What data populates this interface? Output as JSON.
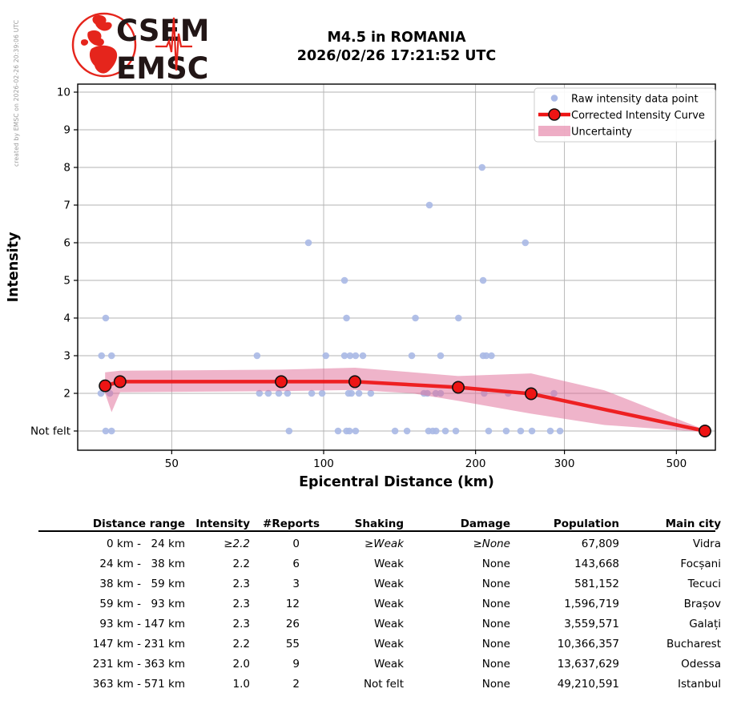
{
  "meta": {
    "created_by": "created by EMSC on 2026-02-26 20:39:06 UTC"
  },
  "logo": {
    "line1": "CSEM",
    "line2": "EMSC"
  },
  "title": {
    "line1": "M4.5 in ROMANIA",
    "line2": "2026/02/26 17:21:52 UTC"
  },
  "chart_data": {
    "type": "scatter",
    "title": "M4.5 in ROMANIA 2026/02/26 17:21:52 UTC",
    "xlabel": "Epicentral Distance (km)",
    "ylabel": "Intensity",
    "x_scale": "log",
    "x_range": [
      32.6,
      598
    ],
    "y_range": [
      0.5,
      10.2
    ],
    "x_ticks": [
      50,
      100,
      200,
      300,
      500
    ],
    "y_ticks": [
      {
        "v": 1,
        "label": "Not felt"
      },
      {
        "v": 2,
        "label": "2"
      },
      {
        "v": 3,
        "label": "3"
      },
      {
        "v": 4,
        "label": "4"
      },
      {
        "v": 5,
        "label": "5"
      },
      {
        "v": 6,
        "label": "6"
      },
      {
        "v": 7,
        "label": "7"
      },
      {
        "v": 8,
        "label": "8"
      },
      {
        "v": 9,
        "label": "9"
      },
      {
        "v": 10,
        "label": "10"
      }
    ],
    "legend": {
      "position": "upper right",
      "entries": [
        "Raw intensity data point",
        "Corrected Intensity Curve",
        "Uncertainty"
      ]
    },
    "series": [
      {
        "name": "Raw intensity data point",
        "points": [
          [
            206,
            8
          ],
          [
            162,
            7
          ],
          [
            93.3,
            6
          ],
          [
            251,
            6
          ],
          [
            110,
            5
          ],
          [
            207,
            5
          ],
          [
            37,
            4
          ],
          [
            111,
            4
          ],
          [
            152,
            4
          ],
          [
            185,
            4
          ],
          [
            36.3,
            3
          ],
          [
            38,
            3
          ],
          [
            73.8,
            3
          ],
          [
            101,
            3
          ],
          [
            110,
            3
          ],
          [
            112.8,
            3
          ],
          [
            115.7,
            3
          ],
          [
            119.6,
            3
          ],
          [
            149.5,
            3
          ],
          [
            170.5,
            3
          ],
          [
            207,
            3
          ],
          [
            210,
            3
          ],
          [
            215,
            3
          ],
          [
            36.2,
            2
          ],
          [
            37.7,
            2
          ],
          [
            74.6,
            2
          ],
          [
            77.7,
            2
          ],
          [
            81.5,
            2
          ],
          [
            84.8,
            2
          ],
          [
            94.7,
            2
          ],
          [
            99.3,
            2
          ],
          [
            112,
            2
          ],
          [
            113.5,
            2
          ],
          [
            117.5,
            2
          ],
          [
            124,
            2
          ],
          [
            158,
            2
          ],
          [
            160.5,
            2
          ],
          [
            166.8,
            2
          ],
          [
            170.5,
            2
          ],
          [
            208,
            2
          ],
          [
            232,
            2
          ],
          [
            286,
            2
          ],
          [
            37,
            1
          ],
          [
            38,
            1
          ],
          [
            85.4,
            1
          ],
          [
            106.8,
            1
          ],
          [
            111,
            1
          ],
          [
            112.5,
            1
          ],
          [
            115.7,
            1
          ],
          [
            138.5,
            1
          ],
          [
            146.3,
            1
          ],
          [
            161.4,
            1
          ],
          [
            164.5,
            1
          ],
          [
            167,
            1
          ],
          [
            174.3,
            1
          ],
          [
            182.8,
            1
          ],
          [
            212.3,
            1
          ],
          [
            230,
            1
          ],
          [
            245.7,
            1
          ],
          [
            258.7,
            1
          ],
          [
            281.3,
            1
          ],
          [
            294,
            1
          ]
        ]
      },
      {
        "name": "Corrected Intensity Curve",
        "points": [
          [
            36.9,
            2.2
          ],
          [
            39.5,
            2.31
          ],
          [
            82.4,
            2.31
          ],
          [
            115.3,
            2.31
          ],
          [
            184.8,
            2.16
          ],
          [
            257.7,
            1.99
          ],
          [
            569.6,
            1.0
          ]
        ]
      }
    ],
    "band_upper": [
      [
        36.9,
        2.56
      ],
      [
        39.5,
        2.6
      ],
      [
        82.4,
        2.63
      ],
      [
        115.3,
        2.68
      ],
      [
        150,
        2.56
      ],
      [
        184.8,
        2.46
      ],
      [
        257.7,
        2.53
      ],
      [
        360,
        2.08
      ],
      [
        569.6,
        1.03
      ]
    ],
    "band_lower": [
      [
        36.9,
        2.0
      ],
      [
        38.0,
        1.5
      ],
      [
        39.5,
        2.03
      ],
      [
        82.4,
        2.06
      ],
      [
        115.3,
        2.09
      ],
      [
        150,
        2.0
      ],
      [
        184.8,
        1.8
      ],
      [
        257.7,
        1.46
      ],
      [
        360,
        1.16
      ],
      [
        569.6,
        0.97
      ]
    ],
    "colors": {
      "raw_point": "#aab9e6",
      "curve": "#ee1414",
      "marker_edge": "#111111",
      "band": "#e06a96",
      "grid": "#b3b3b3",
      "frame": "#000000",
      "legend_border": "#cccccc"
    }
  },
  "table": {
    "headers": [
      "Distance range",
      "Intensity",
      "#Reports",
      "Shaking",
      "Damage",
      "Population",
      "Main city"
    ],
    "rows": [
      {
        "from": "0 km -",
        "to": "24 km",
        "intensity": "≥2.2",
        "reports": "0",
        "shaking": "≥Weak",
        "damage": "≥None",
        "population": "67,809",
        "city": "Vidra"
      },
      {
        "from": "24 km -",
        "to": "38 km",
        "intensity": "2.2",
        "reports": "6",
        "shaking": "Weak",
        "damage": "None",
        "population": "143,668",
        "city": "Focșani"
      },
      {
        "from": "38 km -",
        "to": "59 km",
        "intensity": "2.3",
        "reports": "3",
        "shaking": "Weak",
        "damage": "None",
        "population": "581,152",
        "city": "Tecuci"
      },
      {
        "from": "59 km -",
        "to": "93 km",
        "intensity": "2.3",
        "reports": "12",
        "shaking": "Weak",
        "damage": "None",
        "population": "1,596,719",
        "city": "Brașov"
      },
      {
        "from": "93 km -",
        "to": "147 km",
        "intensity": "2.3",
        "reports": "26",
        "shaking": "Weak",
        "damage": "None",
        "population": "3,559,571",
        "city": "Galați"
      },
      {
        "from": "147 km -",
        "to": "231 km",
        "intensity": "2.2",
        "reports": "55",
        "shaking": "Weak",
        "damage": "None",
        "population": "10,366,357",
        "city": "Bucharest"
      },
      {
        "from": "231 km -",
        "to": "363 km",
        "intensity": "2.0",
        "reports": "9",
        "shaking": "Weak",
        "damage": "None",
        "population": "13,637,629",
        "city": "Odessa"
      },
      {
        "from": "363 km -",
        "to": "571 km",
        "intensity": "1.0",
        "reports": "2",
        "shaking": "Not felt",
        "damage": "None",
        "population": "49,210,591",
        "city": "Istanbul"
      }
    ]
  }
}
